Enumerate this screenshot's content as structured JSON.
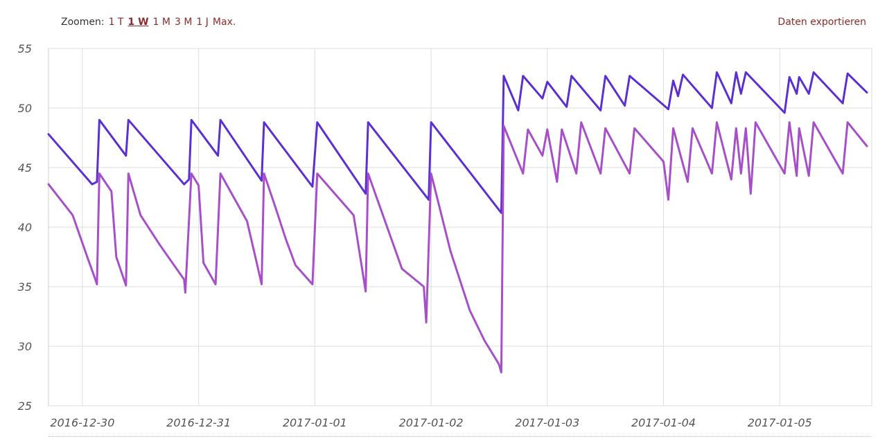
{
  "toolbar": {
    "zoom_label": "Zoomen:",
    "zoom_options": [
      "1 T",
      "1 W",
      "1 M",
      "3 M",
      "1 J",
      "Max."
    ],
    "active_option": "1 W",
    "export_label": "Daten exportieren"
  },
  "chart_data": {
    "type": "line",
    "title": "",
    "xlabel": "",
    "ylabel": "",
    "ylim": [
      25,
      55
    ],
    "yticks": [
      25,
      30,
      35,
      40,
      45,
      50,
      55
    ],
    "xlim": [
      "2016-12-29 17:00",
      "2017-01-05 19:00"
    ],
    "xticks": [
      "2016-12-30",
      "2016-12-31",
      "2017-01-01",
      "2017-01-02",
      "2017-01-03",
      "2017-01-04",
      "2017-01-05"
    ],
    "grid": true,
    "colors": [
      "#5b2fd0",
      "#a64fc9"
    ],
    "series": [
      {
        "points": [
          [
            "2016-12-29 17:00",
            47.8
          ],
          [
            "2016-12-30 02:00",
            43.6
          ],
          [
            "2016-12-30 03:00",
            43.8
          ],
          [
            "2016-12-30 03:30",
            49.0
          ],
          [
            "2016-12-30 09:00",
            46.0
          ],
          [
            "2016-12-30 09:30",
            49.0
          ],
          [
            "2016-12-30 21:00",
            43.6
          ],
          [
            "2016-12-30 22:00",
            44.0
          ],
          [
            "2016-12-30 22:30",
            49.0
          ],
          [
            "2016-12-31 04:00",
            46.0
          ],
          [
            "2016-12-31 04:30",
            49.0
          ],
          [
            "2016-12-31 13:00",
            43.9
          ],
          [
            "2016-12-31 13:30",
            48.8
          ],
          [
            "2016-12-31 23:30",
            43.4
          ],
          [
            "2017-01-01 00:30",
            48.8
          ],
          [
            "2017-01-01 10:30",
            42.8
          ],
          [
            "2017-01-01 11:00",
            48.8
          ],
          [
            "2017-01-01 23:30",
            42.3
          ],
          [
            "2017-01-02 00:00",
            48.8
          ],
          [
            "2017-01-02 14:30",
            41.2
          ],
          [
            "2017-01-02 15:00",
            52.7
          ],
          [
            "2017-01-02 18:00",
            49.8
          ],
          [
            "2017-01-02 19:00",
            52.7
          ],
          [
            "2017-01-02 23:00",
            50.8
          ],
          [
            "2017-01-03 00:00",
            52.2
          ],
          [
            "2017-01-03 04:00",
            50.1
          ],
          [
            "2017-01-03 05:00",
            52.7
          ],
          [
            "2017-01-03 11:00",
            49.8
          ],
          [
            "2017-01-03 12:00",
            52.7
          ],
          [
            "2017-01-03 16:00",
            50.2
          ],
          [
            "2017-01-03 17:00",
            52.7
          ],
          [
            "2017-01-04 01:00",
            49.9
          ],
          [
            "2017-01-04 02:00",
            52.3
          ],
          [
            "2017-01-04 03:00",
            51.0
          ],
          [
            "2017-01-04 04:00",
            52.8
          ],
          [
            "2017-01-04 10:00",
            50.0
          ],
          [
            "2017-01-04 11:00",
            53.0
          ],
          [
            "2017-01-04 14:00",
            50.4
          ],
          [
            "2017-01-04 15:00",
            53.0
          ],
          [
            "2017-01-04 16:00",
            51.2
          ],
          [
            "2017-01-04 17:00",
            53.0
          ],
          [
            "2017-01-05 01:00",
            49.6
          ],
          [
            "2017-01-05 02:00",
            52.6
          ],
          [
            "2017-01-05 03:30",
            51.2
          ],
          [
            "2017-01-05 04:00",
            52.6
          ],
          [
            "2017-01-05 06:00",
            51.2
          ],
          [
            "2017-01-05 07:00",
            53.0
          ],
          [
            "2017-01-05 13:00",
            50.4
          ],
          [
            "2017-01-05 14:00",
            52.9
          ],
          [
            "2017-01-05 18:00",
            51.3
          ]
        ]
      },
      {
        "points": [
          [
            "2016-12-29 17:00",
            43.6
          ],
          [
            "2016-12-29 22:00",
            41.0
          ],
          [
            "2016-12-30 01:00",
            37.5
          ],
          [
            "2016-12-30 02:30",
            35.8
          ],
          [
            "2016-12-30 03:00",
            35.2
          ],
          [
            "2016-12-30 03:30",
            44.5
          ],
          [
            "2016-12-30 06:00",
            43.0
          ],
          [
            "2016-12-30 07:00",
            37.5
          ],
          [
            "2016-12-30 09:00",
            35.1
          ],
          [
            "2016-12-30 09:30",
            44.5
          ],
          [
            "2016-12-30 12:00",
            41.0
          ],
          [
            "2016-12-30 16:00",
            38.5
          ],
          [
            "2016-12-30 21:00",
            35.6
          ],
          [
            "2016-12-30 21:15",
            34.5
          ],
          [
            "2016-12-30 22:30",
            44.5
          ],
          [
            "2016-12-31 00:00",
            43.5
          ],
          [
            "2016-12-31 01:00",
            37.0
          ],
          [
            "2016-12-31 03:30",
            35.2
          ],
          [
            "2016-12-31 04:30",
            44.5
          ],
          [
            "2016-12-31 10:00",
            40.5
          ],
          [
            "2016-12-31 12:00",
            37.0
          ],
          [
            "2016-12-31 13:00",
            35.2
          ],
          [
            "2016-12-31 13:30",
            44.5
          ],
          [
            "2016-12-31 16:00",
            41.5
          ],
          [
            "2016-12-31 18:00",
            39.0
          ],
          [
            "2016-12-31 20:00",
            36.8
          ],
          [
            "2016-12-31 23:30",
            35.2
          ],
          [
            "2017-01-01 00:30",
            44.5
          ],
          [
            "2017-01-01 08:00",
            41.0
          ],
          [
            "2017-01-01 10:30",
            34.6
          ],
          [
            "2017-01-01 11:00",
            44.5
          ],
          [
            "2017-01-01 18:00",
            36.5
          ],
          [
            "2017-01-01 22:30",
            35.0
          ],
          [
            "2017-01-01 23:00",
            32.0
          ],
          [
            "2017-01-02 00:00",
            44.5
          ],
          [
            "2017-01-02 04:00",
            38.0
          ],
          [
            "2017-01-02 08:00",
            33.0
          ],
          [
            "2017-01-02 11:00",
            30.5
          ],
          [
            "2017-01-02 14:00",
            28.5
          ],
          [
            "2017-01-02 14:30",
            27.8
          ],
          [
            "2017-01-02 15:00",
            48.5
          ],
          [
            "2017-01-02 19:00",
            44.5
          ],
          [
            "2017-01-02 20:00",
            48.2
          ],
          [
            "2017-01-02 23:00",
            46.0
          ],
          [
            "2017-01-03 00:00",
            48.2
          ],
          [
            "2017-01-03 02:00",
            43.8
          ],
          [
            "2017-01-03 03:00",
            48.2
          ],
          [
            "2017-01-03 06:00",
            44.5
          ],
          [
            "2017-01-03 07:00",
            48.8
          ],
          [
            "2017-01-03 11:00",
            44.5
          ],
          [
            "2017-01-03 12:00",
            48.3
          ],
          [
            "2017-01-03 17:00",
            44.5
          ],
          [
            "2017-01-03 18:00",
            48.3
          ],
          [
            "2017-01-04 00:00",
            45.5
          ],
          [
            "2017-01-04 01:00",
            42.3
          ],
          [
            "2017-01-04 02:00",
            48.3
          ],
          [
            "2017-01-04 05:00",
            43.8
          ],
          [
            "2017-01-04 06:00",
            48.3
          ],
          [
            "2017-01-04 10:00",
            44.5
          ],
          [
            "2017-01-04 11:00",
            48.8
          ],
          [
            "2017-01-04 14:00",
            44.0
          ],
          [
            "2017-01-04 15:00",
            48.3
          ],
          [
            "2017-01-04 16:00",
            44.5
          ],
          [
            "2017-01-04 17:00",
            48.3
          ],
          [
            "2017-01-04 18:00",
            42.8
          ],
          [
            "2017-01-04 19:00",
            48.8
          ],
          [
            "2017-01-05 01:00",
            44.5
          ],
          [
            "2017-01-05 02:00",
            48.8
          ],
          [
            "2017-01-05 03:30",
            44.3
          ],
          [
            "2017-01-05 04:00",
            48.3
          ],
          [
            "2017-01-05 06:00",
            44.3
          ],
          [
            "2017-01-05 07:00",
            48.8
          ],
          [
            "2017-01-05 13:00",
            44.5
          ],
          [
            "2017-01-05 14:00",
            48.8
          ],
          [
            "2017-01-05 18:00",
            46.8
          ]
        ]
      }
    ]
  }
}
